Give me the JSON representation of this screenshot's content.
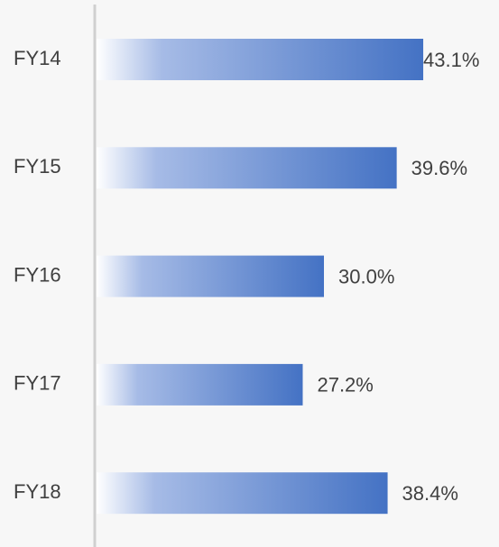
{
  "chart_data": {
    "type": "bar",
    "orientation": "horizontal",
    "categories": [
      "FY14",
      "FY15",
      "FY16",
      "FY17",
      "FY18"
    ],
    "values": [
      43.1,
      39.6,
      30.0,
      27.2,
      38.4
    ],
    "value_labels": [
      "43.1%",
      "39.6%",
      "30.0%",
      "27.2%",
      "38.4%"
    ],
    "color": "#4472c4"
  }
}
